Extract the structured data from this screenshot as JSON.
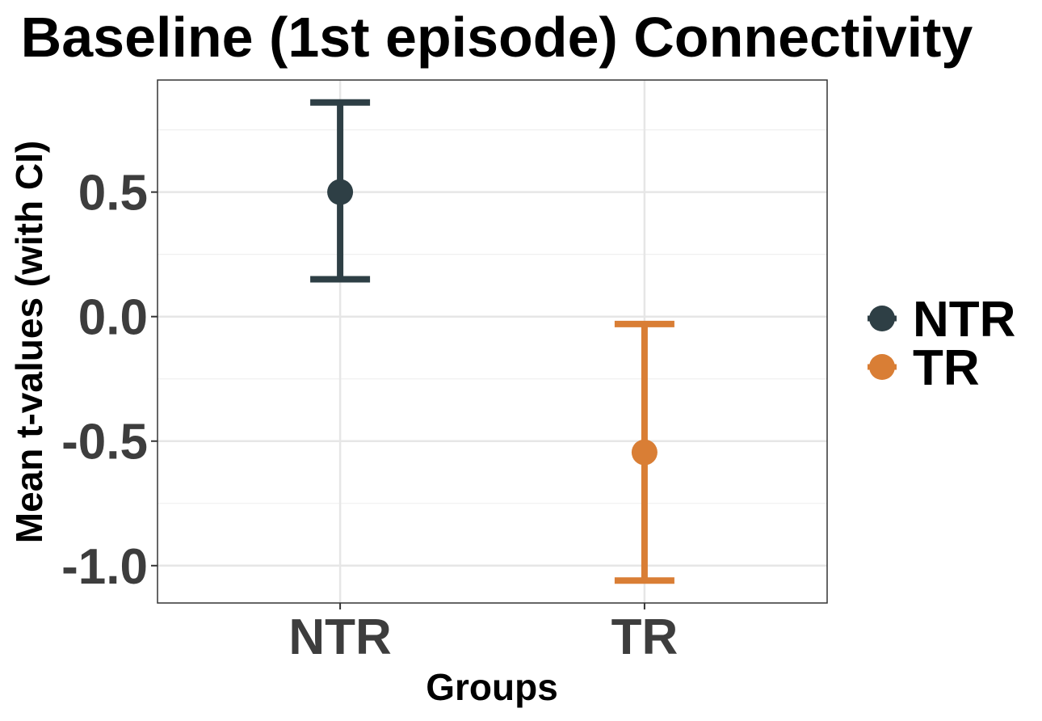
{
  "chart_data": {
    "type": "errorbar",
    "title": "Baseline (1st episode) Connectivity",
    "xlabel": "Groups",
    "ylabel": "Mean t-values (with CI)",
    "categories": [
      "NTR",
      "TR"
    ],
    "ylim": [
      -1.15,
      0.95
    ],
    "y_ticks": [
      -1.0,
      -0.5,
      0.0,
      0.5
    ],
    "y_tick_labels": [
      "-1.0",
      "-0.5",
      "0.0",
      "0.5"
    ],
    "series": [
      {
        "name": "NTR",
        "category": "NTR",
        "mean": 0.5,
        "ci_low": 0.15,
        "ci_high": 0.86,
        "color": "#2e3f45"
      },
      {
        "name": "TR",
        "category": "TR",
        "mean": -0.545,
        "ci_low": -1.06,
        "ci_high": -0.03,
        "color": "#d97e35"
      }
    ],
    "legend": {
      "position": "right",
      "entries": [
        "NTR",
        "TR"
      ]
    },
    "grid": true
  }
}
